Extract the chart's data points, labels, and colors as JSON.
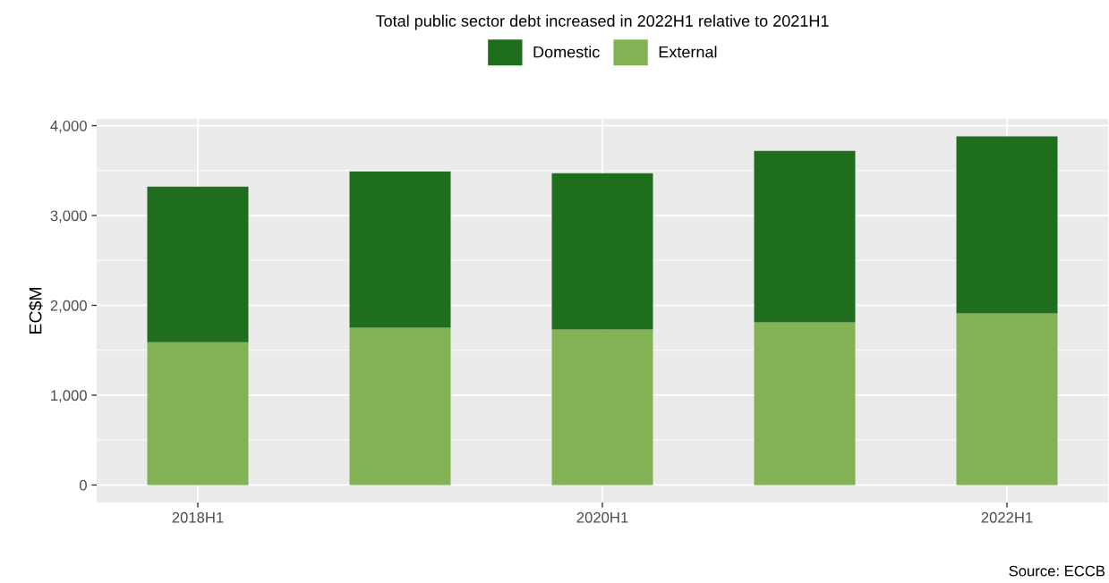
{
  "chart_data": {
    "type": "bar",
    "title": "Total public sector debt increased in 2022H1 relative to 2021H1",
    "ylabel": "EC$M",
    "categories": [
      "2018H1",
      null,
      "2020H1",
      null,
      "2022H1"
    ],
    "stacked": true,
    "series": [
      {
        "name": "External",
        "color": "#83b254",
        "values": [
          1590,
          1750,
          1730,
          1810,
          1910
        ]
      },
      {
        "name": "Domestic",
        "color": "#1e6e1e",
        "values": [
          1730,
          1740,
          1740,
          1910,
          1970
        ]
      }
    ],
    "ylim": [
      -195,
      4075
    ],
    "yticks": [
      {
        "value": 0,
        "label": "0"
      },
      {
        "value": 1000,
        "label": "1,000"
      },
      {
        "value": 2000,
        "label": "2,000"
      },
      {
        "value": 3000,
        "label": "3,000"
      },
      {
        "value": 4000,
        "label": "4,000"
      }
    ],
    "grid": true,
    "legend": "top",
    "annotations": [
      "Source: ECCB"
    ]
  }
}
